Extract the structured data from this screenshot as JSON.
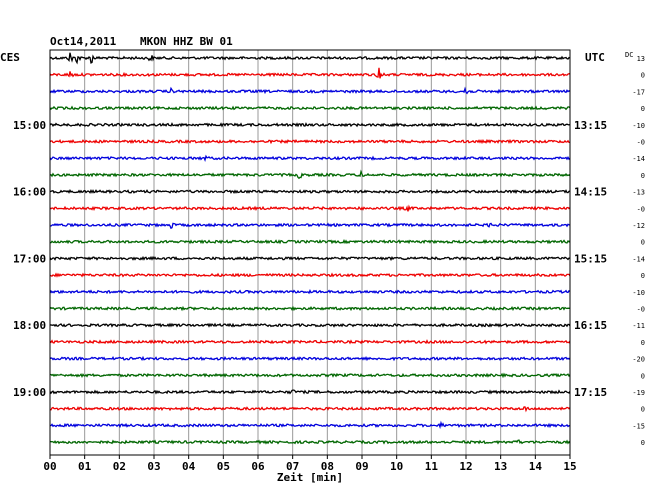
{
  "chart_data": {
    "type": "line",
    "title_date": "Oct14,2011",
    "title_station": "MKON HHZ BW 01",
    "left_timezone": "CES",
    "right_timezone": "UTC",
    "dc_header": "DC",
    "xlabel": "Zeit [min]",
    "xlim": [
      0,
      15
    ],
    "x_ticks": [
      "00",
      "01",
      "02",
      "03",
      "04",
      "05",
      "06",
      "07",
      "08",
      "09",
      "10",
      "11",
      "12",
      "13",
      "14",
      "15"
    ],
    "left_hour_labels": [
      {
        "trace": 4,
        "label": "15:00"
      },
      {
        "trace": 8,
        "label": "16:00"
      },
      {
        "trace": 12,
        "label": "17:00"
      },
      {
        "trace": 16,
        "label": "18:00"
      },
      {
        "trace": 20,
        "label": "19:00"
      }
    ],
    "right_hour_labels": [
      {
        "trace": 4,
        "label": "13:15"
      },
      {
        "trace": 8,
        "label": "14:15"
      },
      {
        "trace": 12,
        "label": "15:15"
      },
      {
        "trace": 16,
        "label": "16:15"
      },
      {
        "trace": 20,
        "label": "17:15"
      }
    ],
    "dc_offsets": [
      "13",
      "0",
      "-17",
      "0",
      "-10",
      "-0",
      "-14",
      "0",
      "-13",
      "-0",
      "-12",
      "0",
      "-14",
      "0",
      "-10",
      "-0",
      "-11",
      "0",
      "-20",
      "0",
      "-19",
      "0",
      "-15",
      "0"
    ],
    "trace_colors": [
      "#000000",
      "#ee0000",
      "#0000dd",
      "#006600"
    ],
    "events": [
      {
        "trace": 0,
        "minute": 0.6,
        "amplitude": 7
      },
      {
        "trace": 0,
        "minute": 0.8,
        "amplitude": 6
      },
      {
        "trace": 0,
        "minute": 1.2,
        "amplitude": 6
      },
      {
        "trace": 0,
        "minute": 2.9,
        "amplitude": 4
      },
      {
        "trace": 1,
        "minute": 0.6,
        "amplitude": 4
      },
      {
        "trace": 1,
        "minute": 9.5,
        "amplitude": 12
      },
      {
        "trace": 2,
        "minute": 12.0,
        "amplitude": 6
      },
      {
        "trace": 2,
        "minute": 3.5,
        "amplitude": 2
      },
      {
        "trace": 6,
        "minute": 4.5,
        "amplitude": 2
      },
      {
        "trace": 7,
        "minute": 7.2,
        "amplitude": 3
      },
      {
        "trace": 7,
        "minute": 9.0,
        "amplitude": 3
      },
      {
        "trace": 9,
        "minute": 10.3,
        "amplitude": 3
      },
      {
        "trace": 10,
        "minute": 3.5,
        "amplitude": 3
      },
      {
        "trace": 10,
        "minute": 12.7,
        "amplitude": 2
      },
      {
        "trace": 20,
        "minute": 7.0,
        "amplitude": 2
      },
      {
        "trace": 21,
        "minute": 13.7,
        "amplitude": 2
      },
      {
        "trace": 22,
        "minute": 11.3,
        "amplitude": 2
      },
      {
        "trace": 23,
        "minute": 13.5,
        "amplitude": 2
      }
    ]
  }
}
